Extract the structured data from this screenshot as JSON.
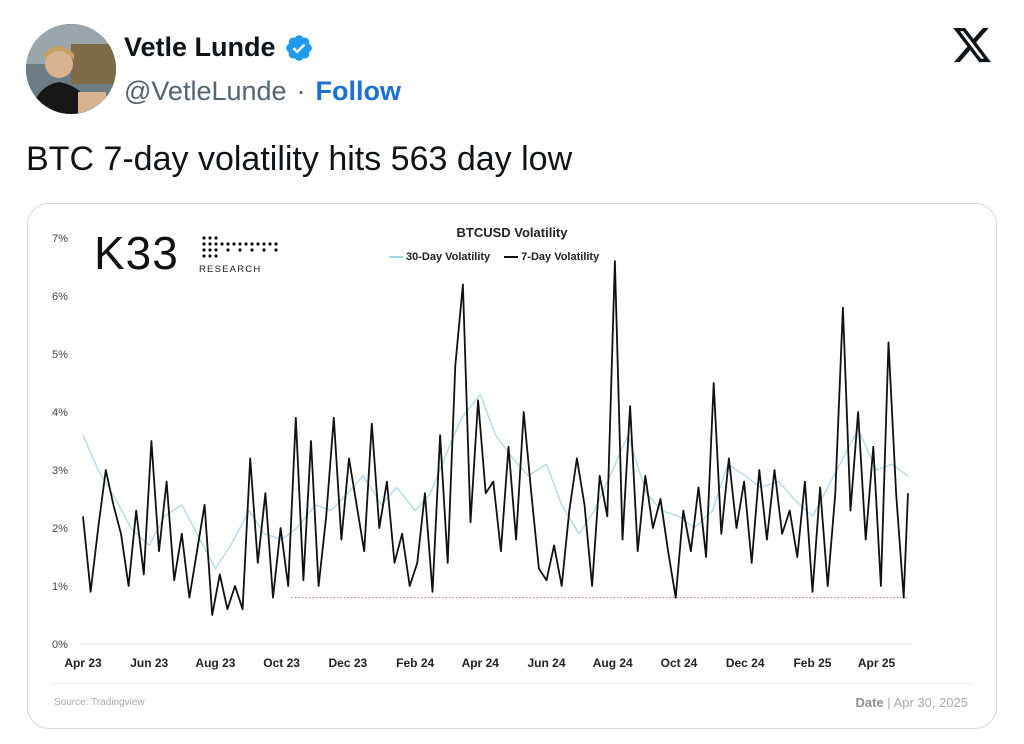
{
  "author": {
    "name": "Vetle Lunde",
    "handle": "@VetleLunde",
    "separator": "·",
    "follow_label": "Follow"
  },
  "tweet": {
    "text": "BTC 7-day volatility hits 563 day low"
  },
  "icons": {
    "verified": "verified-badge-icon",
    "platform": "x-logo-icon"
  },
  "colors": {
    "follow": "#1d6fd0",
    "verified": "#1d9bf0",
    "series_30d": "#a9d4e8",
    "series_7d": "#111111",
    "low_line": "#c07070"
  },
  "card": {
    "logo_text": "K33",
    "logo_sub": "RESEARCH",
    "source": "Source: Tradingview",
    "date_label": "Date",
    "date_value": "| Apr 30, 2025"
  },
  "chart_data": {
    "type": "line",
    "title": "BTCUSD Volatility",
    "xlabel": "",
    "ylabel": "",
    "ylim": [
      0,
      7
    ],
    "y_ticks": [
      "0%",
      "1%",
      "2%",
      "3%",
      "4%",
      "5%",
      "6%",
      "7%"
    ],
    "x_ticks": [
      "Apr 23",
      "Jun 23",
      "Aug 23",
      "Oct 23",
      "Dec 23",
      "Feb 24",
      "Apr 24",
      "Jun 24",
      "Aug 24",
      "Oct 24",
      "Dec 24",
      "Feb 25",
      "Apr 25"
    ],
    "legend_position": "top-center",
    "grid": false,
    "series": [
      {
        "name": "30-Day Volatility",
        "color": "#a9d4e8",
        "x": [
          "2023-04-01",
          "2023-04-15",
          "2023-05-01",
          "2023-05-15",
          "2023-06-01",
          "2023-06-15",
          "2023-07-01",
          "2023-07-15",
          "2023-08-01",
          "2023-08-15",
          "2023-09-01",
          "2023-09-15",
          "2023-10-01",
          "2023-10-15",
          "2023-11-01",
          "2023-11-15",
          "2023-12-01",
          "2023-12-15",
          "2024-01-01",
          "2024-01-15",
          "2024-02-01",
          "2024-02-15",
          "2024-03-01",
          "2024-03-15",
          "2024-04-01",
          "2024-04-15",
          "2024-05-01",
          "2024-05-15",
          "2024-06-01",
          "2024-06-15",
          "2024-07-01",
          "2024-07-15",
          "2024-08-01",
          "2024-08-15",
          "2024-09-01",
          "2024-09-15",
          "2024-10-01",
          "2024-10-15",
          "2024-11-01",
          "2024-11-15",
          "2024-12-01",
          "2024-12-15",
          "2025-01-01",
          "2025-01-15",
          "2025-02-01",
          "2025-02-15",
          "2025-03-01",
          "2025-03-15",
          "2025-04-01",
          "2025-04-15",
          "2025-04-30"
        ],
        "values": [
          3.6,
          3.0,
          2.5,
          2.0,
          1.7,
          2.2,
          2.4,
          1.9,
          1.3,
          1.7,
          2.3,
          1.9,
          1.8,
          2.0,
          2.4,
          2.3,
          2.6,
          2.9,
          2.4,
          2.7,
          2.3,
          2.6,
          3.3,
          3.9,
          4.3,
          3.6,
          3.2,
          2.9,
          3.1,
          2.4,
          1.9,
          2.3,
          3.0,
          3.6,
          2.6,
          2.3,
          2.2,
          2.0,
          2.3,
          3.1,
          2.9,
          2.7,
          2.8,
          2.5,
          2.2,
          2.7,
          3.2,
          3.7,
          3.0,
          3.1,
          2.9
        ]
      },
      {
        "name": "7-Day Volatility",
        "color": "#111111",
        "x": [
          "2023-04-01",
          "2023-04-08",
          "2023-04-15",
          "2023-04-22",
          "2023-04-29",
          "2023-05-06",
          "2023-05-13",
          "2023-05-20",
          "2023-05-27",
          "2023-06-03",
          "2023-06-10",
          "2023-06-17",
          "2023-06-24",
          "2023-07-01",
          "2023-07-08",
          "2023-07-15",
          "2023-07-22",
          "2023-07-29",
          "2023-08-05",
          "2023-08-12",
          "2023-08-19",
          "2023-08-26",
          "2023-09-02",
          "2023-09-09",
          "2023-09-16",
          "2023-09-23",
          "2023-09-30",
          "2023-10-07",
          "2023-10-14",
          "2023-10-21",
          "2023-10-28",
          "2023-11-04",
          "2023-11-11",
          "2023-11-18",
          "2023-11-25",
          "2023-12-02",
          "2023-12-09",
          "2023-12-16",
          "2023-12-23",
          "2023-12-30",
          "2024-01-06",
          "2024-01-13",
          "2024-01-20",
          "2024-01-27",
          "2024-02-03",
          "2024-02-10",
          "2024-02-17",
          "2024-02-24",
          "2024-03-02",
          "2024-03-09",
          "2024-03-16",
          "2024-03-23",
          "2024-03-30",
          "2024-04-06",
          "2024-04-13",
          "2024-04-20",
          "2024-04-27",
          "2024-05-04",
          "2024-05-11",
          "2024-05-18",
          "2024-05-25",
          "2024-06-01",
          "2024-06-08",
          "2024-06-15",
          "2024-06-22",
          "2024-06-29",
          "2024-07-06",
          "2024-07-13",
          "2024-07-20",
          "2024-07-27",
          "2024-08-03",
          "2024-08-10",
          "2024-08-17",
          "2024-08-24",
          "2024-08-31",
          "2024-09-07",
          "2024-09-14",
          "2024-09-21",
          "2024-09-28",
          "2024-10-05",
          "2024-10-12",
          "2024-10-19",
          "2024-10-26",
          "2024-11-02",
          "2024-11-09",
          "2024-11-16",
          "2024-11-23",
          "2024-11-30",
          "2024-12-07",
          "2024-12-14",
          "2024-12-21",
          "2024-12-28",
          "2025-01-04",
          "2025-01-11",
          "2025-01-18",
          "2025-01-25",
          "2025-02-01",
          "2025-02-08",
          "2025-02-15",
          "2025-02-22",
          "2025-03-01",
          "2025-03-08",
          "2025-03-15",
          "2025-03-22",
          "2025-03-29",
          "2025-04-05",
          "2025-04-12",
          "2025-04-19",
          "2025-04-26",
          "2025-04-30"
        ],
        "values": [
          2.2,
          0.9,
          2.0,
          3.0,
          2.4,
          1.9,
          1.0,
          2.3,
          1.2,
          3.5,
          1.6,
          2.8,
          1.1,
          1.9,
          0.8,
          1.6,
          2.4,
          0.5,
          1.2,
          0.6,
          1.0,
          0.6,
          3.2,
          1.4,
          2.6,
          0.8,
          2.0,
          1.0,
          3.9,
          1.1,
          3.5,
          1.0,
          2.2,
          3.9,
          1.8,
          3.2,
          2.4,
          1.6,
          3.8,
          2.0,
          2.8,
          1.4,
          1.9,
          1.0,
          1.4,
          2.6,
          0.9,
          3.6,
          1.4,
          4.8,
          6.2,
          2.1,
          4.2,
          2.6,
          2.8,
          1.6,
          3.4,
          1.8,
          4.0,
          2.6,
          1.3,
          1.1,
          1.7,
          1.0,
          2.3,
          3.2,
          2.4,
          1.0,
          2.9,
          2.2,
          6.6,
          1.8,
          4.1,
          1.6,
          2.9,
          2.0,
          2.5,
          1.6,
          0.8,
          2.3,
          1.6,
          2.7,
          1.5,
          4.5,
          1.9,
          3.2,
          2.0,
          2.8,
          1.4,
          3.0,
          1.8,
          3.0,
          1.9,
          2.3,
          1.5,
          2.8,
          0.9,
          2.7,
          1.0,
          2.6,
          5.8,
          2.3,
          4.0,
          1.8,
          3.4,
          1.0,
          5.2,
          2.6,
          0.8,
          2.6
        ]
      }
    ],
    "annotations": [
      {
        "type": "horizontal-line",
        "y": 0.8,
        "style": "dotted",
        "color": "#c07070"
      }
    ]
  }
}
